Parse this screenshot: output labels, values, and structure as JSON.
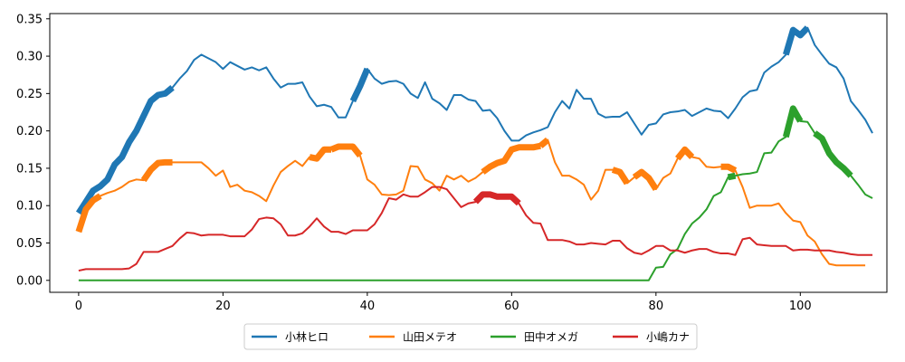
{
  "chart_data": {
    "type": "line",
    "title": "",
    "xlabel": "",
    "ylabel": "",
    "xlim": [
      -4,
      112
    ],
    "ylim": [
      -0.016,
      0.357
    ],
    "xticks": [
      0,
      20,
      40,
      60,
      80,
      100
    ],
    "yticks": [
      0.0,
      0.05,
      0.1,
      0.15,
      0.2,
      0.25,
      0.3,
      0.35
    ],
    "ytick_labels": [
      "0.00",
      "0.05",
      "0.10",
      "0.15",
      "0.20",
      "0.25",
      "0.30",
      "0.35"
    ],
    "grid": false,
    "legend_placement": "bottom-center",
    "series": [
      {
        "name": "小林ヒロ",
        "color": "#1f77b4",
        "values": [
          0.09,
          0.105,
          0.12,
          0.126,
          0.135,
          0.155,
          0.165,
          0.185,
          0.2,
          0.22,
          0.24,
          0.248,
          0.25,
          0.258,
          0.27,
          0.28,
          0.295,
          0.302,
          0.297,
          0.292,
          0.283,
          0.292,
          0.287,
          0.282,
          0.285,
          0.281,
          0.285,
          0.27,
          0.258,
          0.263,
          0.263,
          0.265,
          0.246,
          0.233,
          0.235,
          0.232,
          0.218,
          0.218,
          0.24,
          0.26,
          0.283,
          0.27,
          0.263,
          0.266,
          0.267,
          0.263,
          0.25,
          0.244,
          0.265,
          0.243,
          0.237,
          0.228,
          0.248,
          0.248,
          0.242,
          0.24,
          0.227,
          0.228,
          0.217,
          0.2,
          0.187,
          0.187,
          0.194,
          0.198,
          0.201,
          0.205,
          0.225,
          0.24,
          0.23,
          0.255,
          0.243,
          0.243,
          0.223,
          0.218,
          0.219,
          0.219,
          0.225,
          0.21,
          0.195,
          0.208,
          0.21,
          0.222,
          0.225,
          0.226,
          0.228,
          0.22,
          0.225,
          0.23,
          0.227,
          0.226,
          0.217,
          0.23,
          0.245,
          0.253,
          0.255,
          0.278,
          0.286,
          0.292,
          0.302,
          0.335,
          0.328,
          0.338,
          0.315,
          0.302,
          0.29,
          0.285,
          0.27,
          0.24,
          0.228,
          0.215,
          0.197
        ],
        "highlights": [
          [
            0,
            13
          ],
          [
            38,
            40
          ],
          [
            98,
            101
          ]
        ]
      },
      {
        "name": "山田メテオ",
        "color": "#ff7f0e",
        "values": [
          0.065,
          0.095,
          0.107,
          0.113,
          0.117,
          0.12,
          0.125,
          0.132,
          0.135,
          0.134,
          0.148,
          0.157,
          0.158,
          0.158,
          0.158,
          0.158,
          0.158,
          0.158,
          0.15,
          0.14,
          0.147,
          0.125,
          0.128,
          0.12,
          0.118,
          0.113,
          0.106,
          0.127,
          0.145,
          0.153,
          0.16,
          0.153,
          0.165,
          0.163,
          0.175,
          0.175,
          0.179,
          0.179,
          0.179,
          0.167,
          0.135,
          0.128,
          0.115,
          0.114,
          0.115,
          0.12,
          0.153,
          0.152,
          0.135,
          0.13,
          0.12,
          0.14,
          0.135,
          0.14,
          0.132,
          0.137,
          0.145,
          0.152,
          0.157,
          0.16,
          0.175,
          0.178,
          0.178,
          0.178,
          0.18,
          0.188,
          0.158,
          0.14,
          0.14,
          0.135,
          0.128,
          0.108,
          0.12,
          0.148,
          0.148,
          0.145,
          0.13,
          0.138,
          0.145,
          0.137,
          0.122,
          0.137,
          0.143,
          0.163,
          0.175,
          0.165,
          0.163,
          0.152,
          0.151,
          0.152,
          0.152,
          0.147,
          0.125,
          0.097,
          0.1,
          0.1,
          0.1,
          0.103,
          0.09,
          0.08,
          0.078,
          0.06,
          0.052,
          0.035,
          0.022,
          0.02,
          0.02,
          0.02,
          0.02,
          0.02
        ],
        "highlights": [
          [
            0,
            3
          ],
          [
            9,
            13
          ],
          [
            32,
            35
          ],
          [
            35,
            39
          ],
          [
            56,
            64
          ],
          [
            64,
            65
          ],
          [
            74,
            76
          ],
          [
            77,
            80
          ],
          [
            83,
            85
          ],
          [
            89,
            91
          ]
        ]
      },
      {
        "name": "田中オメガ",
        "color": "#2ca02c",
        "values": [
          0,
          0,
          0,
          0,
          0,
          0,
          0,
          0,
          0,
          0,
          0,
          0,
          0,
          0,
          0,
          0,
          0,
          0,
          0,
          0,
          0,
          0,
          0,
          0,
          0,
          0,
          0,
          0,
          0,
          0,
          0,
          0,
          0,
          0,
          0,
          0,
          0,
          0,
          0,
          0,
          0,
          0,
          0,
          0,
          0,
          0,
          0,
          0,
          0,
          0,
          0,
          0,
          0,
          0,
          0,
          0,
          0,
          0,
          0,
          0,
          0,
          0,
          0,
          0,
          0,
          0,
          0,
          0,
          0,
          0,
          0,
          0,
          0,
          0,
          0,
          0,
          0,
          0,
          0,
          0,
          0.017,
          0.018,
          0.035,
          0.042,
          0.062,
          0.076,
          0.084,
          0.095,
          0.113,
          0.118,
          0.138,
          0.14,
          0.142,
          0.143,
          0.145,
          0.17,
          0.171,
          0.186,
          0.192,
          0.23,
          0.213,
          0.212,
          0.197,
          0.19,
          0.17,
          0.158,
          0.15,
          0.14,
          0.128,
          0.115,
          0.11
        ],
        "highlights": [
          [
            90,
            91
          ],
          [
            98,
            100
          ],
          [
            102,
            107
          ]
        ]
      },
      {
        "name": "小嶋カナ",
        "color": "#d62728",
        "values": [
          0.013,
          0.015,
          0.015,
          0.015,
          0.015,
          0.015,
          0.015,
          0.016,
          0.022,
          0.038,
          0.038,
          0.038,
          0.042,
          0.046,
          0.056,
          0.064,
          0.063,
          0.06,
          0.061,
          0.061,
          0.061,
          0.059,
          0.059,
          0.059,
          0.068,
          0.082,
          0.084,
          0.083,
          0.075,
          0.06,
          0.06,
          0.063,
          0.072,
          0.083,
          0.072,
          0.065,
          0.065,
          0.062,
          0.067,
          0.067,
          0.067,
          0.075,
          0.09,
          0.11,
          0.108,
          0.115,
          0.112,
          0.112,
          0.118,
          0.125,
          0.125,
          0.122,
          0.11,
          0.098,
          0.103,
          0.105,
          0.115,
          0.115,
          0.112,
          0.112,
          0.112,
          0.103,
          0.087,
          0.077,
          0.076,
          0.054,
          0.054,
          0.054,
          0.052,
          0.048,
          0.048,
          0.05,
          0.049,
          0.048,
          0.053,
          0.053,
          0.043,
          0.037,
          0.035,
          0.04,
          0.046,
          0.046,
          0.04,
          0.04,
          0.037,
          0.04,
          0.042,
          0.042,
          0.038,
          0.036,
          0.036,
          0.034,
          0.055,
          0.057,
          0.048,
          0.047,
          0.046,
          0.046,
          0.046,
          0.04,
          0.041,
          0.041,
          0.04,
          0.04,
          0.04,
          0.038,
          0.037,
          0.035,
          0.034,
          0.034,
          0.034
        ],
        "highlights": [
          [
            55,
            61
          ]
        ]
      }
    ]
  }
}
